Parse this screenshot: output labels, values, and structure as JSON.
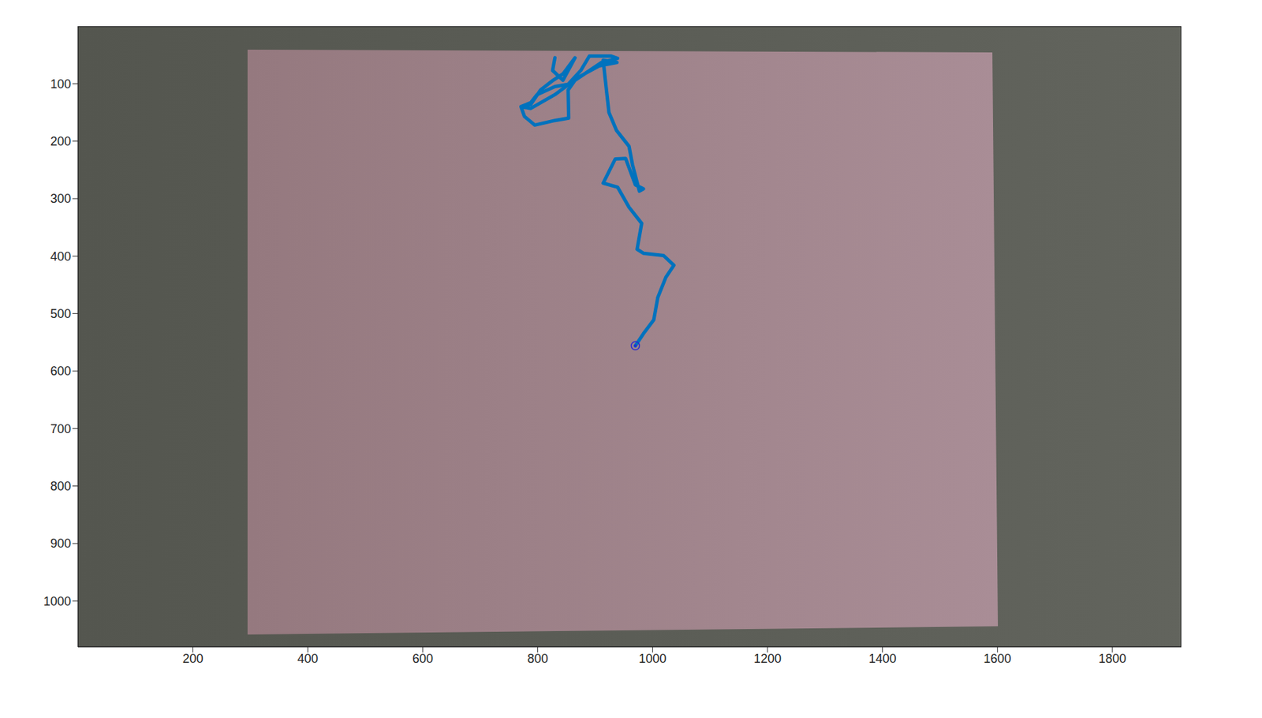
{
  "chart_data": {
    "type": "line",
    "xlim": [
      0,
      1920
    ],
    "ylim": [
      0,
      1080
    ],
    "xticks": [
      200,
      400,
      600,
      800,
      1000,
      1200,
      1400,
      1600,
      1800
    ],
    "yticks": [
      100,
      200,
      300,
      400,
      500,
      600,
      700,
      800,
      900,
      1000
    ],
    "grid": false,
    "series": [
      {
        "type": "line",
        "color": "#0072bd",
        "x": [
          830,
          826,
          844,
          865,
          844,
          827,
          805,
          788,
          771,
          788,
          799,
          830,
          853,
          875,
          890,
          928,
          939,
          911,
          886,
          865,
          853,
          854,
          830,
          795,
          777,
          771,
          788,
          830,
          872,
          907,
          938,
          914,
          917,
          924,
          937,
          959,
          965,
          977,
          984,
          970,
          953,
          935,
          914,
          939,
          959,
          981,
          973,
          984,
          1019,
          1037,
          1023,
          1009,
          1002,
          984,
          970
        ],
        "y": [
          55,
          77,
          94,
          55,
          83,
          94,
          111,
          136,
          140,
          133,
          119,
          105,
          101,
          77,
          52,
          52,
          56,
          63,
          80,
          94,
          111,
          160,
          164,
          172,
          157,
          140,
          143,
          119,
          88,
          69,
          63,
          59,
          87,
          150,
          181,
          209,
          241,
          287,
          283,
          276,
          230,
          231,
          273,
          280,
          315,
          343,
          388,
          395,
          399,
          416,
          437,
          472,
          511,
          535,
          556
        ]
      },
      {
        "type": "scatter",
        "marker": "circle",
        "color": "#2b2bd0",
        "x": [
          970
        ],
        "y": [
          556
        ]
      }
    ]
  }
}
